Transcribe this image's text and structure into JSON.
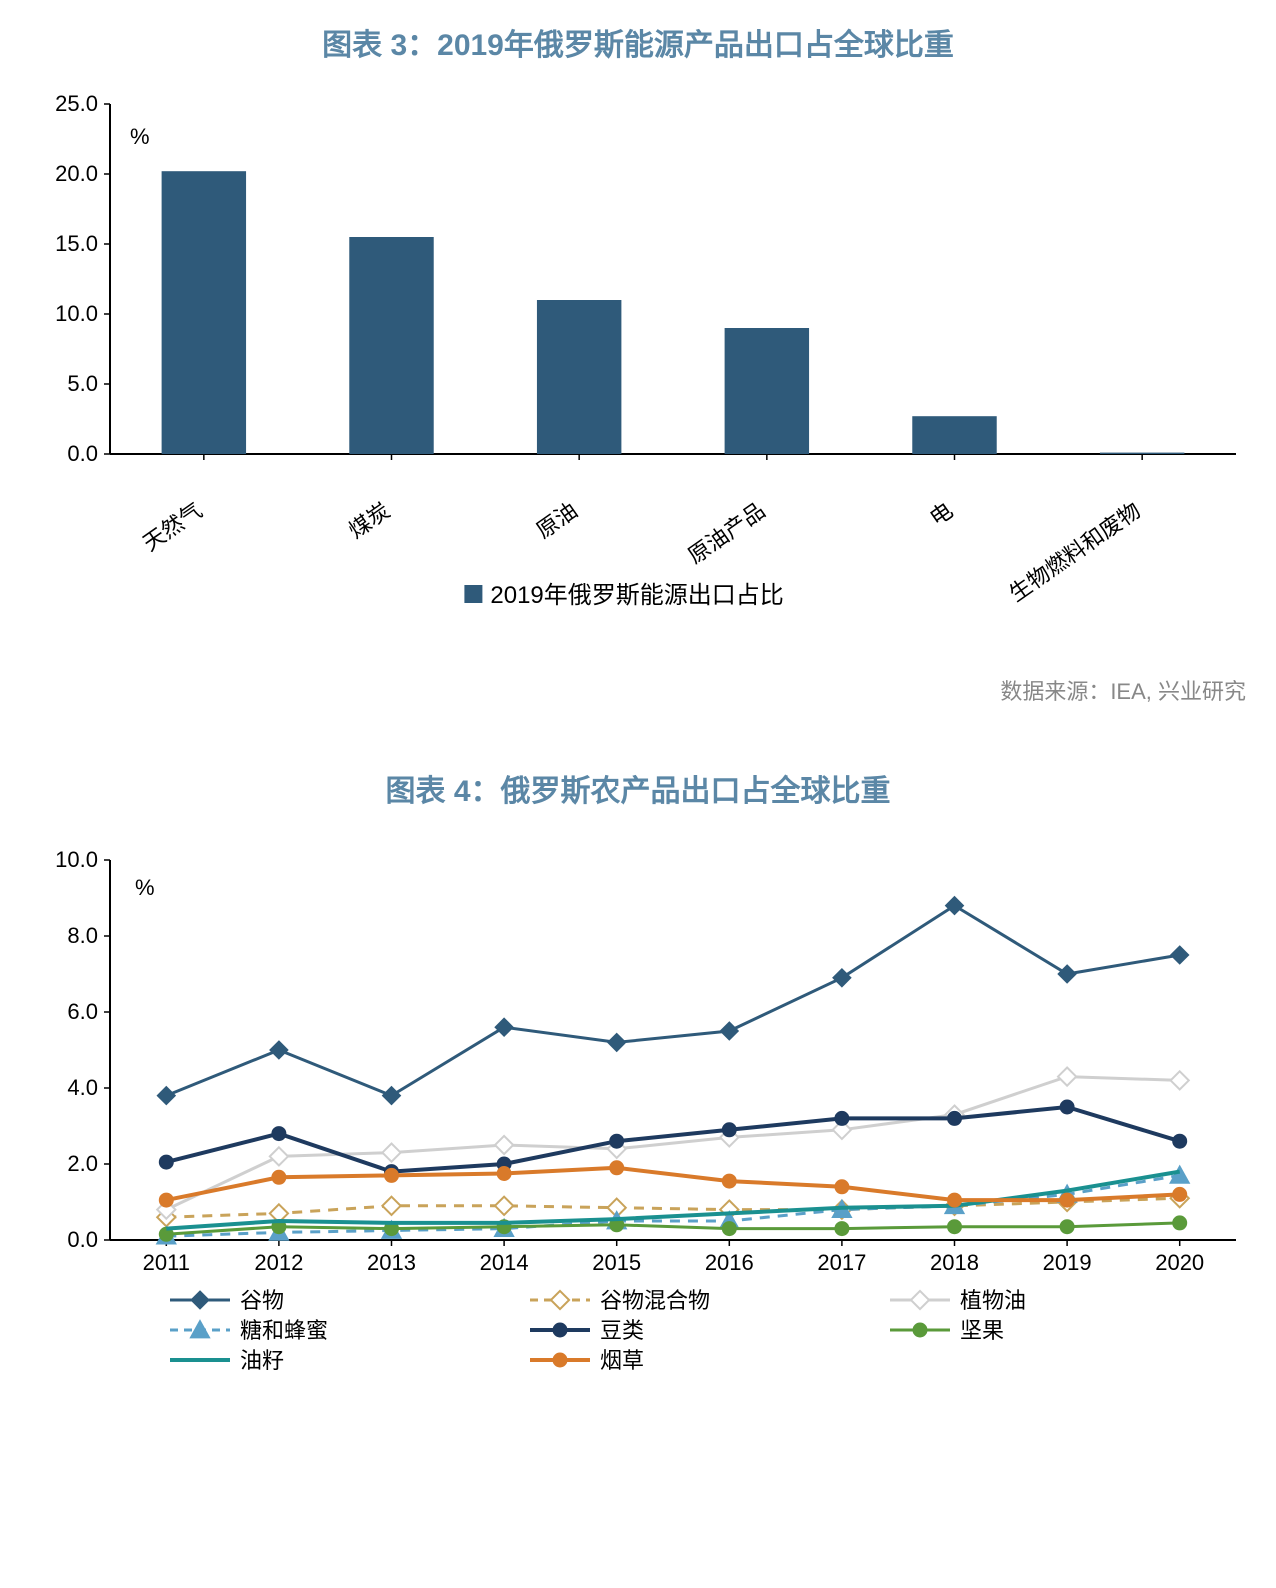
{
  "chart3": {
    "title": "图表 3：2019年俄罗斯能源产品出口占全球比重",
    "type": "bar",
    "categories": [
      "天然气",
      "煤炭",
      "原油",
      "原油产品",
      "电",
      "生物燃料和废物"
    ],
    "values": [
      20.2,
      15.5,
      11.0,
      9.0,
      2.7,
      0.1
    ],
    "bar_color": "#2f5a7a",
    "yaxis": {
      "min": 0,
      "max": 25,
      "step": 5,
      "labels": [
        "0.0",
        "5.0",
        "10.0",
        "15.0",
        "20.0",
        "25.0"
      ],
      "unit": "%"
    },
    "legend_label": "2019年俄罗斯能源出口占比",
    "title_color": "#5b87a6",
    "title_fontsize": 30,
    "axis_fontsize": 22,
    "tick_fontsize": 22,
    "category_fontsize": 22,
    "legend_fontsize": 24,
    "background_color": "#ffffff",
    "axis_color": "#000000",
    "bar_width_ratio": 0.45,
    "source": "数据来源：IEA, 兴业研究"
  },
  "chart4": {
    "title": "图表 4：俄罗斯农产品出口占全球比重",
    "type": "line",
    "x_categories": [
      "2011",
      "2012",
      "2013",
      "2014",
      "2015",
      "2016",
      "2017",
      "2018",
      "2019",
      "2020"
    ],
    "yaxis": {
      "min": 0,
      "max": 10,
      "step": 2,
      "labels": [
        "0.0",
        "2.0",
        "4.0",
        "6.0",
        "8.0",
        "10.0"
      ],
      "unit": "%"
    },
    "series": [
      {
        "name": "谷物",
        "color": "#2f5a7a",
        "marker": "diamond",
        "dash": "solid",
        "width": 3,
        "values": [
          3.8,
          5.0,
          3.8,
          5.6,
          5.2,
          5.5,
          6.9,
          8.8,
          7.0,
          7.5
        ]
      },
      {
        "name": "谷物混合物",
        "color": "#c9a35a",
        "marker": "diamond-open",
        "dash": "dash",
        "width": 3,
        "values": [
          0.6,
          0.7,
          0.9,
          0.9,
          0.85,
          0.8,
          0.8,
          0.9,
          1.0,
          1.1
        ]
      },
      {
        "name": "植物油",
        "color": "#cfcfcf",
        "marker": "diamond-open",
        "dash": "solid",
        "width": 3,
        "values": [
          0.8,
          2.2,
          2.3,
          2.5,
          2.4,
          2.7,
          2.9,
          3.3,
          4.3,
          4.2
        ]
      },
      {
        "name": "糖和蜂蜜",
        "color": "#5aa0c8",
        "marker": "triangle",
        "dash": "dash",
        "width": 3,
        "values": [
          0.1,
          0.2,
          0.25,
          0.3,
          0.5,
          0.5,
          0.8,
          0.9,
          1.2,
          1.7
        ]
      },
      {
        "name": "豆类",
        "color": "#1e3a5f",
        "marker": "circle",
        "dash": "solid",
        "width": 4,
        "values": [
          2.05,
          2.8,
          1.8,
          2.0,
          2.6,
          2.9,
          3.2,
          3.2,
          3.5,
          2.6
        ]
      },
      {
        "name": "坚果",
        "color": "#5a9a3a",
        "marker": "circle",
        "dash": "solid",
        "width": 3,
        "values": [
          0.15,
          0.35,
          0.3,
          0.35,
          0.4,
          0.3,
          0.3,
          0.35,
          0.35,
          0.45
        ]
      },
      {
        "name": "油籽",
        "color": "#1a9090",
        "marker": "none",
        "dash": "solid",
        "width": 4,
        "values": [
          0.3,
          0.5,
          0.45,
          0.45,
          0.55,
          0.7,
          0.85,
          0.9,
          1.3,
          1.8
        ]
      },
      {
        "name": "烟草",
        "color": "#d97a2a",
        "marker": "circle",
        "dash": "solid",
        "width": 4,
        "values": [
          1.05,
          1.65,
          1.7,
          1.75,
          1.9,
          1.55,
          1.4,
          1.05,
          1.05,
          1.2
        ]
      }
    ],
    "title_color": "#5b87a6",
    "title_fontsize": 30,
    "axis_fontsize": 22,
    "tick_fontsize": 22,
    "legend_fontsize": 22,
    "background_color": "#ffffff",
    "axis_color": "#000000",
    "marker_size": 7
  }
}
